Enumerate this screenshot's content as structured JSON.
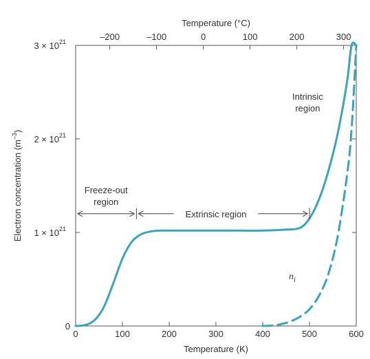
{
  "chart_data": {
    "type": "line",
    "xlabel": "Temperature (K)",
    "x2label": "Temperature (°C)",
    "ylabel": "Electron concentration (m",
    "ylabel_exp": "–3",
    "ylabel_close": ")",
    "xlim": [
      0,
      600
    ],
    "ylim": [
      0,
      3e+21
    ],
    "x_ticks": [
      0,
      100,
      200,
      300,
      400,
      500,
      600
    ],
    "x_tick_labels": [
      "0",
      "100",
      "200",
      "300",
      "400",
      "500",
      "600"
    ],
    "x2_ticks": [
      -200,
      -100,
      0,
      100,
      200,
      300
    ],
    "x2_tick_labels": [
      "–200",
      "–100",
      "0",
      "100",
      "200",
      "300"
    ],
    "y_ticks": [
      0,
      1e+21,
      2e+21,
      3e+21
    ],
    "y_tick_labels": [
      {
        "base": "0",
        "exp": ""
      },
      {
        "base": "1 × 10",
        "exp": "21"
      },
      {
        "base": "2 × 10",
        "exp": "21"
      },
      {
        "base": "3 × 10",
        "exp": "21"
      }
    ],
    "series": [
      {
        "style": "solid",
        "color": "#3aa3bf",
        "x": [
          0,
          20,
          40,
          60,
          80,
          100,
          120,
          140,
          160,
          180,
          200,
          250,
          300,
          350,
          400,
          450,
          480,
          500,
          520,
          540,
          560,
          580,
          590,
          600
        ],
        "y": [
          0,
          1e+19,
          6e+19,
          2e+20,
          4.5e+20,
          7.2e+20,
          9e+20,
          9.8e+20,
          1.01e+21,
          1.02e+21,
          1.02e+21,
          1.02e+21,
          1.02e+21,
          1.02e+21,
          1.02e+21,
          1.03e+21,
          1.05e+21,
          1.15e+21,
          1.35e+21,
          1.65e+21,
          2.05e+21,
          2.6e+21,
          3e+21,
          3e+21
        ]
      },
      {
        "name": "n",
        "name_sub": "i",
        "style": "dashed",
        "color": "#3aa3bf",
        "x": [
          400,
          420,
          440,
          460,
          480,
          500,
          520,
          540,
          560,
          580,
          590,
          600
        ],
        "y": [
          0,
          5e+18,
          2e+19,
          5e+19,
          1e+20,
          1.8e+20,
          3.2e+20,
          5.5e+20,
          9.5e+20,
          1.6e+21,
          2.1e+21,
          3e+21
        ]
      }
    ],
    "annotations": [
      {
        "text_lines": [
          "Freeze-out",
          "region"
        ],
        "x_range": [
          0,
          130
        ],
        "y": 1.2e+21,
        "label_x": 65,
        "label_y": 1.42e+21
      },
      {
        "text_lines": [
          "Extrinsic region"
        ],
        "x_range": [
          130,
          500
        ],
        "y": 1.2e+21,
        "label_x": 300,
        "label_y": 1.2e+21
      },
      {
        "text_lines": [
          "Intrinsic",
          "region"
        ],
        "x": 555,
        "y": 2.3e+21
      }
    ]
  }
}
